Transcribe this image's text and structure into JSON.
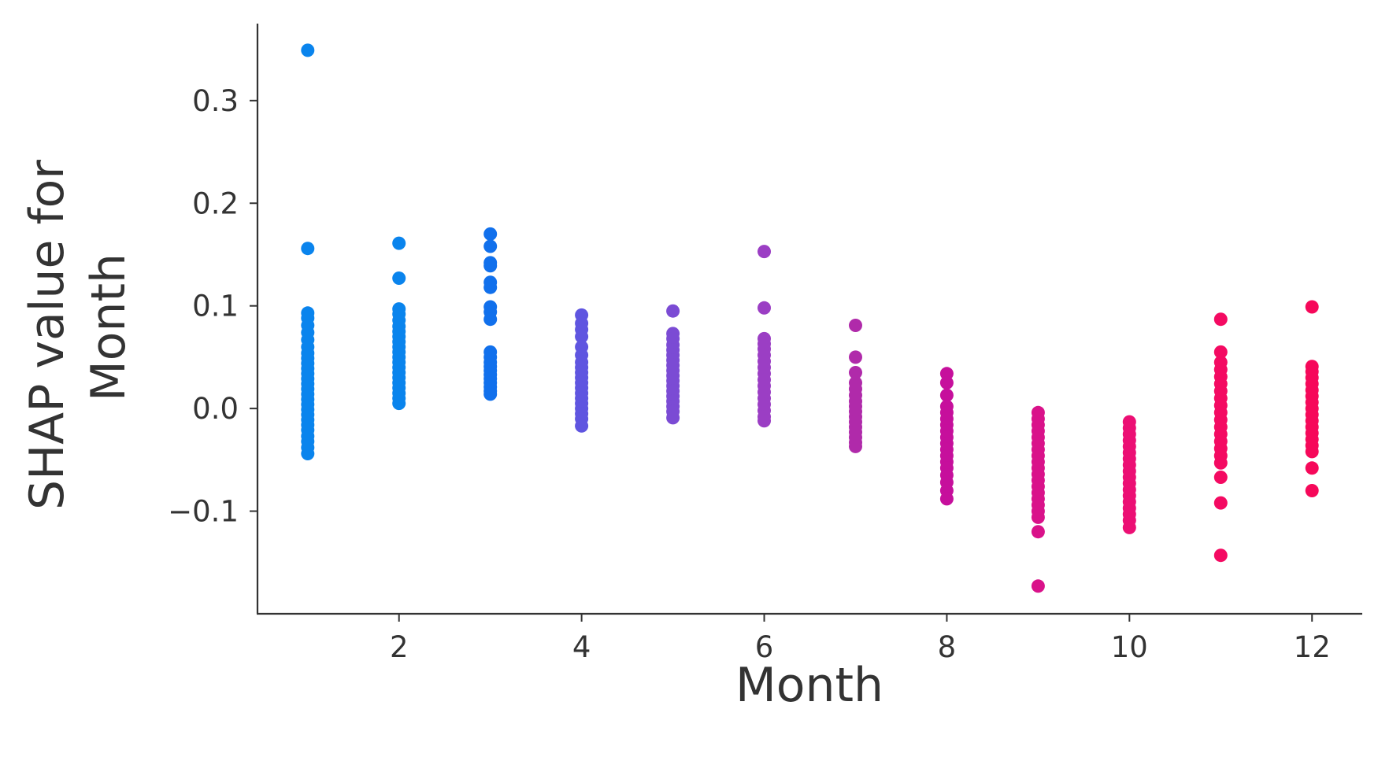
{
  "chart_data": {
    "type": "scatter",
    "title": "",
    "xlabel": "Month",
    "ylabel_lines": [
      "SHAP value for",
      "Month"
    ],
    "xlim": [
      0.45,
      12.55
    ],
    "ylim": [
      -0.2,
      0.375
    ],
    "x_ticks": [
      2,
      4,
      6,
      8,
      10,
      12
    ],
    "x_tick_labels": [
      "2",
      "4",
      "6",
      "8",
      "10",
      "12"
    ],
    "y_ticks": [
      -0.1,
      0.0,
      0.1,
      0.2,
      0.3
    ],
    "y_tick_labels": [
      "−0.1",
      "0.0",
      "0.1",
      "0.2",
      "0.3"
    ],
    "grid": false,
    "legend": "none",
    "series": [
      {
        "x": 1,
        "color": "#0a84ed",
        "values": [
          0.349,
          0.156,
          0.093,
          0.088,
          0.081,
          0.074,
          0.067,
          0.06,
          0.054,
          0.049,
          0.044,
          0.039,
          0.034,
          0.029,
          0.024,
          0.019,
          0.014,
          0.009,
          0.004,
          -0.001,
          -0.006,
          -0.011,
          -0.016,
          -0.021,
          -0.027,
          -0.032,
          -0.038,
          -0.044
        ]
      },
      {
        "x": 2,
        "color": "#0a84ed",
        "values": [
          0.161,
          0.127,
          0.097,
          0.092,
          0.086,
          0.08,
          0.075,
          0.07,
          0.065,
          0.06,
          0.055,
          0.05,
          0.045,
          0.04,
          0.035,
          0.03,
          0.025,
          0.02,
          0.015,
          0.01,
          0.005
        ]
      },
      {
        "x": 3,
        "color": "#1170ec",
        "values": [
          0.17,
          0.158,
          0.142,
          0.139,
          0.123,
          0.118,
          0.099,
          0.094,
          0.087,
          0.055,
          0.05,
          0.045,
          0.041,
          0.037,
          0.033,
          0.029,
          0.025,
          0.021,
          0.017,
          0.014
        ]
      },
      {
        "x": 4,
        "color": "#5f55e0",
        "values": [
          0.091,
          0.083,
          0.077,
          0.07,
          0.06,
          0.052,
          0.045,
          0.04,
          0.035,
          0.03,
          0.025,
          0.02,
          0.015,
          0.01,
          0.005,
          0.0,
          -0.005,
          -0.01,
          -0.017
        ]
      },
      {
        "x": 5,
        "color": "#7b4bd4",
        "values": [
          0.095,
          0.073,
          0.068,
          0.062,
          0.057,
          0.052,
          0.047,
          0.042,
          0.037,
          0.032,
          0.027,
          0.022,
          0.017,
          0.012,
          0.007,
          0.002,
          -0.003,
          -0.009
        ]
      },
      {
        "x": 6,
        "color": "#9b3ec4",
        "values": [
          0.153,
          0.098,
          0.068,
          0.063,
          0.058,
          0.052,
          0.046,
          0.04,
          0.034,
          0.028,
          0.022,
          0.016,
          0.01,
          0.004,
          -0.002,
          -0.008,
          -0.012
        ]
      },
      {
        "x": 7,
        "color": "#b02aaa",
        "values": [
          0.081,
          0.05,
          0.035,
          0.025,
          0.019,
          0.013,
          0.007,
          0.002,
          -0.003,
          -0.008,
          -0.013,
          -0.018,
          -0.023,
          -0.028,
          -0.033,
          -0.037
        ]
      },
      {
        "x": 8,
        "color": "#c60f9c",
        "values": [
          0.034,
          0.025,
          0.013,
          0.002,
          -0.004,
          -0.01,
          -0.016,
          -0.022,
          -0.028,
          -0.034,
          -0.04,
          -0.046,
          -0.052,
          -0.058,
          -0.065,
          -0.072,
          -0.08,
          -0.088
        ]
      },
      {
        "x": 9,
        "color": "#d9128a",
        "values": [
          -0.004,
          -0.01,
          -0.016,
          -0.022,
          -0.028,
          -0.034,
          -0.04,
          -0.046,
          -0.052,
          -0.058,
          -0.064,
          -0.07,
          -0.076,
          -0.082,
          -0.088,
          -0.094,
          -0.1,
          -0.106,
          -0.12,
          -0.173
        ]
      },
      {
        "x": 10,
        "color": "#ec0f74",
        "values": [
          -0.013,
          -0.019,
          -0.025,
          -0.031,
          -0.037,
          -0.043,
          -0.049,
          -0.055,
          -0.061,
          -0.067,
          -0.073,
          -0.079,
          -0.085,
          -0.091,
          -0.097,
          -0.103,
          -0.109,
          -0.116
        ]
      },
      {
        "x": 11,
        "color": "#f40a62",
        "values": [
          0.087,
          0.055,
          0.045,
          0.038,
          0.031,
          0.024,
          0.017,
          0.01,
          0.003,
          -0.004,
          -0.011,
          -0.018,
          -0.025,
          -0.032,
          -0.039,
          -0.046,
          -0.053,
          -0.067,
          -0.092,
          -0.143
        ]
      },
      {
        "x": 12,
        "color": "#f6085a",
        "values": [
          0.099,
          0.041,
          0.036,
          0.03,
          0.024,
          0.018,
          0.012,
          0.006,
          0.0,
          -0.006,
          -0.012,
          -0.018,
          -0.024,
          -0.03,
          -0.036,
          -0.042,
          -0.058,
          -0.08
        ]
      }
    ]
  }
}
